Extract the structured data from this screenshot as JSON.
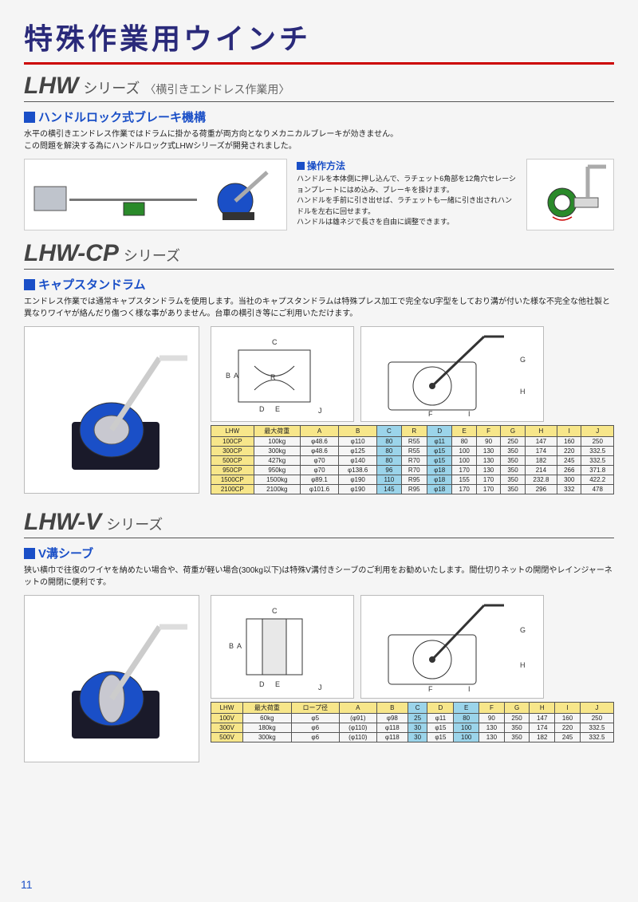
{
  "page_title": "特殊作業用ウインチ",
  "page_number": "11",
  "colors": {
    "title": "#2a2a7a",
    "accent_red": "#c00000",
    "heading_blue": "#1a4fc7",
    "table_header_bg": "#f7e68a",
    "table_highlight_bg": "#9bd4ea"
  },
  "lhw": {
    "series_name": "LHW",
    "series_suffix": "シリーズ",
    "series_note": "〈横引きエンドレス作業用〉",
    "sub_heading": "ハンドルロック式ブレーキ機構",
    "body1": "水平の横引きエンドレス作業ではドラムに掛かる荷重が両方向となりメカニカルブレーキが効きません。",
    "body2": "この問題を解決する為にハンドルロック式LHWシリーズが開発されました。",
    "op_label": "操作方法",
    "op_text1": "ハンドルを本体側に押し込んで、ラチェット6角部を12角穴セレーションプレートにはめ込み、ブレーキを掛けます。",
    "op_text2": "ハンドルを手前に引き出せば、ラチェットも一緒に引き出されハンドルを左右に回せます。",
    "op_text3": "ハンドルは雄ネジで長さを自由に調整できます。"
  },
  "lhw_cp": {
    "series_name": "LHW-CP",
    "series_suffix": "シリーズ",
    "sub_heading": "キャプスタンドラム",
    "body": "エンドレス作業では通常キャプスタンドラムを使用します。当社のキャプスタンドラムは特殊プレス加工で完全なU字型をしており溝が付いた様な不完全な他社製と異なりワイヤが絡んだり傷つく様な事がありません。台車の横引き等にご利用いただけます。",
    "table": {
      "columns": [
        "LHW",
        "最大荷重",
        "A",
        "B",
        "C",
        "R",
        "D",
        "E",
        "F",
        "G",
        "H",
        "I",
        "J"
      ],
      "highlight_cols": [
        4,
        6
      ],
      "rows": [
        [
          "100CP",
          "100kg",
          "φ48.6",
          "φ110",
          "80",
          "R55",
          "φ11",
          "80",
          "90",
          "250",
          "147",
          "160",
          "250"
        ],
        [
          "300CP",
          "300kg",
          "φ48.6",
          "φ125",
          "80",
          "R55",
          "φ15",
          "100",
          "130",
          "350",
          "174",
          "220",
          "332.5"
        ],
        [
          "500CP",
          "427kg",
          "φ70",
          "φ140",
          "80",
          "R70",
          "φ15",
          "100",
          "130",
          "350",
          "182",
          "245",
          "332.5"
        ],
        [
          "950CP",
          "950kg",
          "φ70",
          "φ138.6",
          "96",
          "R70",
          "φ18",
          "170",
          "130",
          "350",
          "214",
          "266",
          "371.8"
        ],
        [
          "1500CP",
          "1500kg",
          "φ89.1",
          "φ190",
          "110",
          "R95",
          "φ18",
          "155",
          "170",
          "350",
          "232.8",
          "300",
          "422.2"
        ],
        [
          "2100CP",
          "2100kg",
          "φ101.6",
          "φ190",
          "145",
          "R95",
          "φ18",
          "170",
          "170",
          "350",
          "296",
          "332",
          "478"
        ]
      ]
    }
  },
  "lhw_v": {
    "series_name": "LHW-V",
    "series_suffix": "シリーズ",
    "sub_heading": "V溝シーブ",
    "body": "狭い横巾で往復のワイヤを納めたい場合や、荷重が軽い場合(300kg以下)は特殊V溝付きシーブのご利用をお勧めいたします。間仕切りネットの開閉やレインジャーネットの開閉に便利です。",
    "table": {
      "columns": [
        "LHW",
        "最大荷重",
        "ロープ径",
        "A",
        "B",
        "C",
        "D",
        "E",
        "F",
        "G",
        "H",
        "I",
        "J"
      ],
      "highlight_cols": [
        5,
        7
      ],
      "rows": [
        [
          "100V",
          "60kg",
          "φ5",
          "(φ91)",
          "φ98",
          "25",
          "φ11",
          "80",
          "90",
          "250",
          "147",
          "160",
          "250"
        ],
        [
          "300V",
          "180kg",
          "φ6",
          "(φ110)",
          "φ118",
          "30",
          "φ15",
          "100",
          "130",
          "350",
          "174",
          "220",
          "332.5"
        ],
        [
          "500V",
          "300kg",
          "φ6",
          "(φ110)",
          "φ118",
          "30",
          "φ15",
          "100",
          "130",
          "350",
          "182",
          "245",
          "332.5"
        ]
      ]
    }
  }
}
